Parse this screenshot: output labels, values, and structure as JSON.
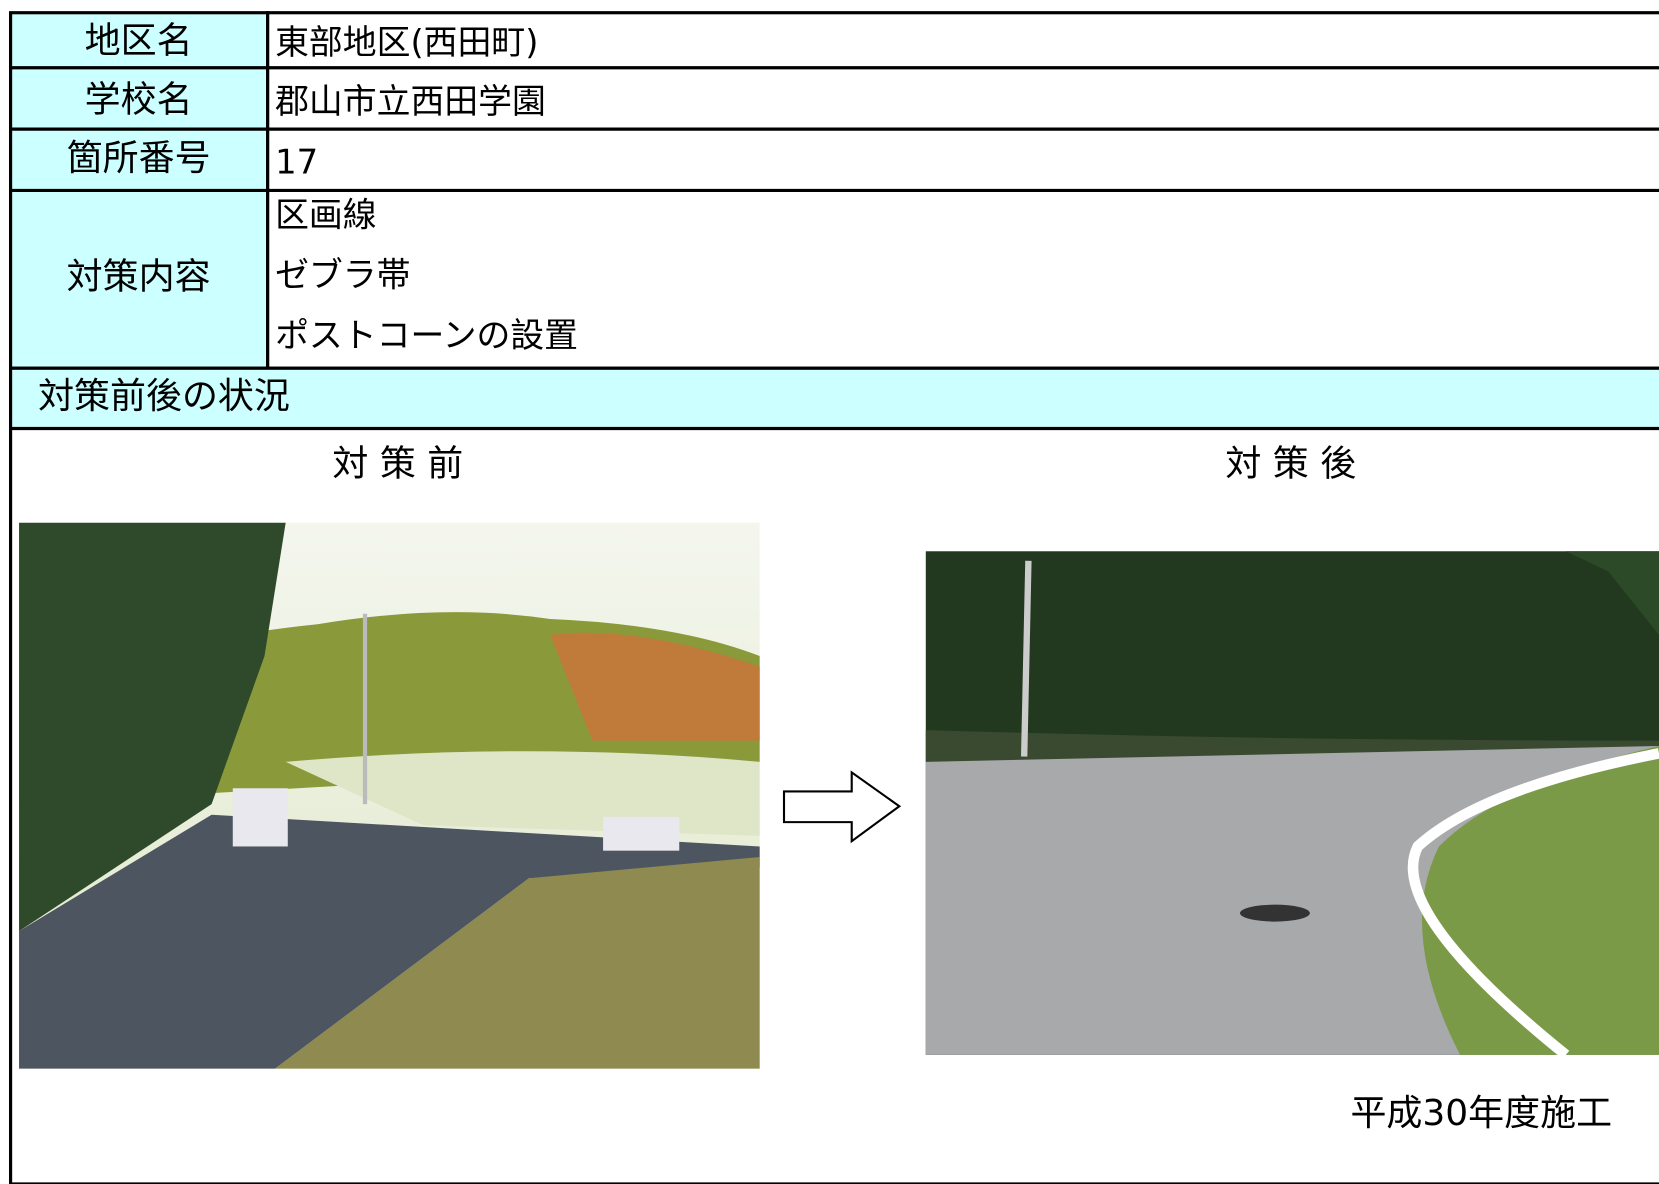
{
  "table": {
    "rows": [
      {
        "label": "地区名",
        "value": "東部地区(西田町)"
      },
      {
        "label": "学校名",
        "value": "郡山市立西田学園"
      },
      {
        "label": "箇所番号",
        "value": "17"
      },
      {
        "label": "対策内容",
        "values": [
          "区画線",
          "ゼブラ帯",
          "ポストコーンの設置"
        ]
      }
    ],
    "section_title": "対策前後の状況",
    "before_title": "対 策 前",
    "after_title": "対 策 後",
    "after_caption": "平成30年度施工"
  }
}
